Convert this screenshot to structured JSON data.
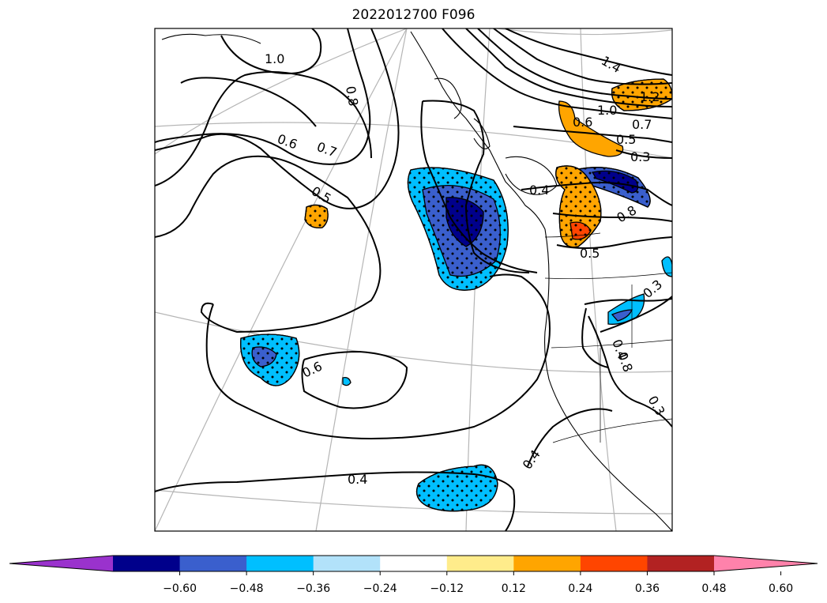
{
  "title": "2022012700 F096",
  "contour_labels": [
    "1.0",
    "0.8",
    "0.6",
    "0.7",
    "0.5",
    "0.6",
    "0.4",
    "0.4",
    "1.4",
    "1.2",
    "1.0",
    "0.6",
    "0.7",
    "0.5",
    "0.3",
    "0.4",
    "0.8",
    "0.5",
    "0.3",
    "0.4",
    "0.8",
    "0.3"
  ],
  "colorbar": {
    "colors": [
      "#9a32cd",
      "#00008b",
      "#3a5fcd",
      "#00bfff",
      "#b2e2fa",
      "#ffffff",
      "#ffec8b",
      "#ffa500",
      "#ff4500",
      "#b22222",
      "#ff82ab"
    ],
    "tick_labels": [
      "−0.60",
      "−0.48",
      "−0.36",
      "−0.24",
      "−0.12",
      "0.12",
      "0.24",
      "0.36",
      "0.48",
      "0.60"
    ],
    "extend": "both"
  }
}
